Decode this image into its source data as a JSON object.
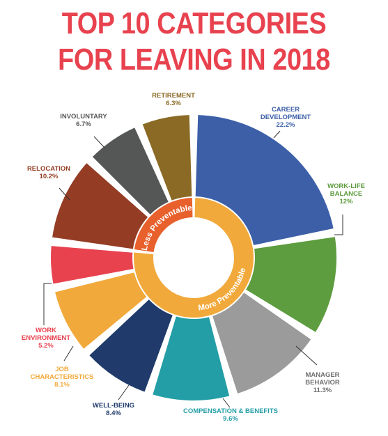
{
  "title": [
    "TOP 10 CATEGORIES",
    "FOR LEAVING IN 2018"
  ],
  "chart_data": {
    "type": "pie",
    "title": "TOP 10 CATEGORIES FOR LEAVING IN 2018",
    "slices": [
      {
        "name": [
          "CAREER",
          "DEVELOPMENT"
        ],
        "value_label": "22.2%",
        "value": 22.2,
        "color": "#3c5fa8",
        "group": "More Preventable"
      },
      {
        "name": [
          "WORK-LIFE",
          "BALANCE"
        ],
        "value_label": "12%",
        "value": 12,
        "color": "#5d9c3f",
        "group": "More Preventable"
      },
      {
        "name": [
          "MANAGER",
          "BEHAVIOR"
        ],
        "value_label": "11.3%",
        "value": 11.3,
        "color": "#9b9b9b",
        "group": "More Preventable"
      },
      {
        "name": [
          "COMPENSATION & BENEFITS"
        ],
        "value_label": "9.6%",
        "value": 9.6,
        "color": "#249ea6",
        "group": "More Preventable"
      },
      {
        "name": [
          "WELL-BEING"
        ],
        "value_label": "8.4%",
        "value": 8.4,
        "color": "#1f3a6b",
        "group": "More Preventable"
      },
      {
        "name": [
          "JOB",
          "CHARACTERISTICS"
        ],
        "value_label": "8.1%",
        "value": 8.1,
        "color": "#f2a93b",
        "group": "More Preventable"
      },
      {
        "name": [
          "WORK",
          "ENVIRONMENT"
        ],
        "value_label": "5.2%",
        "value": 5.2,
        "color": "#e8424f",
        "group": "More Preventable"
      },
      {
        "name": [
          "RELOCATION"
        ],
        "value_label": "10.2%",
        "value": 10.2,
        "color": "#943d24",
        "group": "Less Preventable"
      },
      {
        "name": [
          "INVOLUNTARY"
        ],
        "value_label": "6.7%",
        "value": 6.7,
        "color": "#555756",
        "group": "Less Preventable"
      },
      {
        "name": [
          "RETIREMENT"
        ],
        "value_label": "6.3%",
        "value": 6.3,
        "color": "#8a6a25",
        "group": "Less Preventable"
      }
    ],
    "groups": [
      {
        "name": "More Preventable",
        "color": "#f2a93b"
      },
      {
        "name": "Less Preventable",
        "color": "#e8602c"
      }
    ]
  }
}
